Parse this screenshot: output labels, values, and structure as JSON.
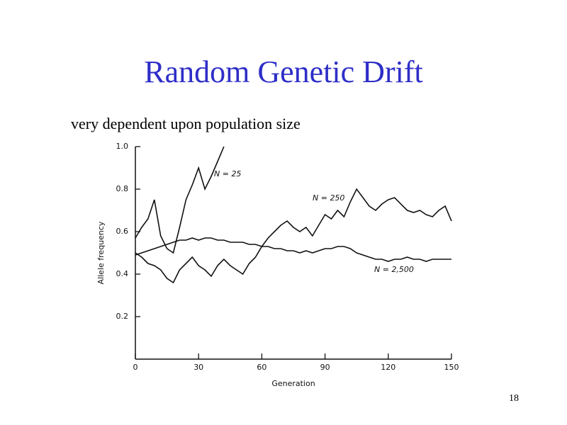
{
  "chart_data": {
    "type": "line",
    "title": "Random Genetic Drift",
    "subtitle": "very dependent upon population size",
    "x_label": "Generation",
    "y_label": "Allele frequency",
    "x": [
      0,
      3,
      6,
      9,
      12,
      15,
      18,
      21,
      24,
      27,
      30,
      33,
      36,
      39,
      42,
      45,
      48,
      51,
      54,
      57,
      60,
      63,
      66,
      69,
      72,
      75,
      78,
      81,
      84,
      87,
      90,
      93,
      96,
      99,
      102,
      105,
      108,
      111,
      114,
      117,
      120,
      123,
      126,
      129,
      132,
      135,
      138,
      141,
      144,
      147,
      150
    ],
    "series": [
      {
        "name": "N = 25",
        "color": "#111111",
        "values": [
          0.57,
          0.62,
          0.66,
          0.75,
          0.58,
          0.52,
          0.5,
          0.62,
          0.75,
          0.82,
          0.9,
          0.8,
          0.86,
          0.93,
          1.0,
          null,
          null,
          null,
          null,
          null,
          null,
          null,
          null,
          null,
          null,
          null,
          null,
          null,
          null,
          null,
          null,
          null,
          null,
          null,
          null,
          null,
          null,
          null,
          null,
          null,
          null,
          null,
          null,
          null,
          null,
          null,
          null,
          null,
          null,
          null,
          null
        ]
      },
      {
        "name": "N = 250",
        "color": "#111111",
        "values": [
          0.5,
          0.48,
          0.45,
          0.44,
          0.42,
          0.38,
          0.36,
          0.42,
          0.45,
          0.48,
          0.44,
          0.42,
          0.39,
          0.44,
          0.47,
          0.44,
          0.42,
          0.4,
          0.45,
          0.48,
          0.53,
          0.57,
          0.6,
          0.63,
          0.65,
          0.62,
          0.6,
          0.62,
          0.58,
          0.63,
          0.68,
          0.66,
          0.7,
          0.67,
          0.74,
          0.8,
          0.76,
          0.72,
          0.7,
          0.73,
          0.75,
          0.76,
          0.73,
          0.7,
          0.69,
          0.7,
          0.68,
          0.67,
          0.7,
          0.72,
          0.65
        ]
      },
      {
        "name": "N = 2,500",
        "color": "#111111",
        "values": [
          0.49,
          0.5,
          0.51,
          0.52,
          0.53,
          0.54,
          0.55,
          0.56,
          0.56,
          0.57,
          0.56,
          0.57,
          0.57,
          0.56,
          0.56,
          0.55,
          0.55,
          0.55,
          0.54,
          0.54,
          0.53,
          0.53,
          0.52,
          0.52,
          0.51,
          0.51,
          0.5,
          0.51,
          0.5,
          0.51,
          0.52,
          0.52,
          0.53,
          0.53,
          0.52,
          0.5,
          0.49,
          0.48,
          0.47,
          0.47,
          0.46,
          0.47,
          0.47,
          0.48,
          0.47,
          0.47,
          0.46,
          0.47,
          0.47,
          0.47,
          0.47
        ]
      }
    ],
    "xlim": [
      0,
      150
    ],
    "xticks": [
      0,
      30,
      60,
      90,
      120,
      150
    ],
    "ylim": [
      0,
      1.0
    ],
    "yticks": [
      0.2,
      0.4,
      0.6,
      0.8,
      {
        "value": 1.0,
        "label": "1.0"
      }
    ],
    "grid": false
  },
  "page_number": "18"
}
